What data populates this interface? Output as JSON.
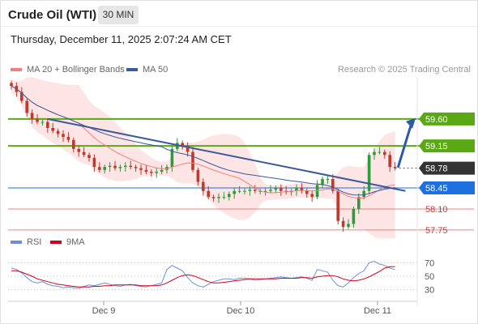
{
  "header": {
    "title": "Crude Oil (WTI)",
    "timeframe": "30 MIN",
    "datetime": "Thursday, December 11, 2025 2:07:24 AM CET"
  },
  "legend": {
    "ma20_label": "MA 20 + Bollinger Bands",
    "ma50_label": "MA 50",
    "research": "Research © 2025 Trading Central"
  },
  "rsi_legend": {
    "rsi_label": "RSI",
    "ma_label": "9MA"
  },
  "colors": {
    "bull": "#2e9a3e",
    "bear": "#c0392b",
    "ma20": "#f08080",
    "band_fill": "#fde0e0",
    "ma50": "#3b5a9a",
    "trend": "#3b5a9a",
    "resistance": "#5aa914",
    "support_blue": "#1e6fe0",
    "support_red": "#ef7f7f",
    "rsi": "#6a8fd8",
    "rsi_ma": "#d0021b",
    "arrow": "#2c5aa8"
  },
  "chart_data": [
    {
      "type": "candlestick",
      "name": "Crude Oil (WTI) 30 min",
      "x_ticks": [
        "Dec 9",
        "Dec 10",
        "Dec 11"
      ],
      "ylim": [
        57.6,
        60.3
      ],
      "closes": [
        60.15,
        60.05,
        59.9,
        59.7,
        59.6,
        59.55,
        59.55,
        59.45,
        59.4,
        59.35,
        59.3,
        59.25,
        59.1,
        59.05,
        59.0,
        58.95,
        58.8,
        58.75,
        58.8,
        58.82,
        58.78,
        58.8,
        58.82,
        58.8,
        58.78,
        58.75,
        58.72,
        58.7,
        58.72,
        58.75,
        58.8,
        59.1,
        59.2,
        59.15,
        59.05,
        58.75,
        58.55,
        58.4,
        58.3,
        58.28,
        58.3,
        58.3,
        58.35,
        58.4,
        58.4,
        58.4,
        58.42,
        58.4,
        58.4,
        58.4,
        58.42,
        58.45,
        58.4,
        58.38,
        58.4,
        58.45,
        58.4,
        58.35,
        58.3,
        58.5,
        58.6,
        58.6,
        58.4,
        57.9,
        57.8,
        57.85,
        58.1,
        58.3,
        58.4,
        59.0,
        59.05,
        59.05,
        59.0,
        58.8,
        58.78
      ],
      "levels": [
        {
          "value": 59.6,
          "label": "59.60",
          "style": "resistance"
        },
        {
          "value": 59.15,
          "label": "59.15",
          "style": "resistance"
        },
        {
          "value": 58.78,
          "label": "58.78",
          "style": "last"
        },
        {
          "value": 58.45,
          "label": "58.45",
          "style": "support_blue"
        },
        {
          "value": 58.1,
          "label": "58.10",
          "style": "support_red"
        },
        {
          "value": 57.75,
          "label": "57.75",
          "style": "support_red"
        }
      ],
      "trendline": {
        "start": 59.6,
        "end": 58.4
      },
      "projection": {
        "from": 58.78,
        "to": 59.6
      }
    },
    {
      "type": "line",
      "name": "RSI",
      "ylim": [
        20,
        80
      ],
      "y_ticks": [
        70,
        50,
        30
      ],
      "series": [
        {
          "name": "RSI",
          "values": [
            62,
            60,
            55,
            48,
            42,
            40,
            42,
            38,
            36,
            35,
            33,
            34,
            33,
            32,
            35,
            37,
            36,
            38,
            40,
            38,
            36,
            35,
            37,
            38,
            36,
            35,
            34,
            36,
            38,
            40,
            60,
            66,
            62,
            58,
            48,
            40,
            36,
            34,
            38,
            42,
            44,
            46,
            46,
            45,
            47,
            47,
            46,
            44,
            45,
            46,
            47,
            48,
            49,
            48,
            47,
            48,
            49,
            47,
            44,
            60,
            58,
            56,
            44,
            36,
            34,
            40,
            48,
            54,
            58,
            70,
            72,
            68,
            66,
            62,
            60
          ]
        },
        {
          "name": "9MA",
          "values": [
            58,
            58,
            56,
            53,
            50,
            46,
            44,
            42,
            40,
            38,
            37,
            36,
            35,
            34,
            34,
            34,
            35,
            35,
            36,
            36,
            37,
            37,
            37,
            37,
            37,
            36,
            36,
            36,
            36,
            37,
            40,
            44,
            48,
            51,
            52,
            51,
            48,
            45,
            42,
            40,
            40,
            41,
            42,
            43,
            44,
            45,
            46,
            46,
            46,
            46,
            46,
            46,
            47,
            47,
            47,
            47,
            48,
            48,
            47,
            49,
            50,
            51,
            51,
            49,
            46,
            44,
            43,
            44,
            46,
            49,
            53,
            57,
            62,
            64,
            64
          ]
        }
      ]
    }
  ]
}
